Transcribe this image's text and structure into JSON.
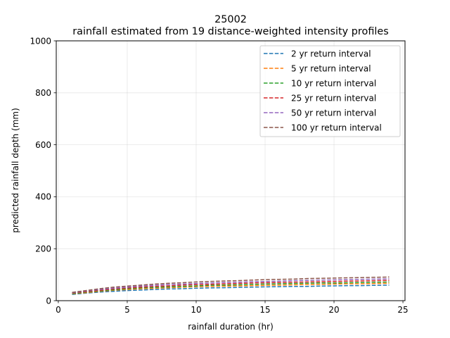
{
  "chart_data": {
    "type": "line",
    "title": "25002",
    "subtitle": "rainfall estimated from 19 distance-weighted intensity profiles",
    "xlabel": "rainfall duration (hr)",
    "ylabel": "predicted rainfall depth (mm)",
    "xlim": [
      -0.15,
      25.15
    ],
    "ylim": [
      0,
      1000
    ],
    "xticks": [
      0,
      5,
      10,
      15,
      20,
      25
    ],
    "yticks": [
      0,
      200,
      400,
      600,
      800,
      1000
    ],
    "grid": true,
    "legend_position": "top-right",
    "x": [
      1,
      2,
      3,
      4,
      5,
      6,
      7,
      8,
      9,
      10,
      11,
      12,
      13,
      14,
      15,
      16,
      17,
      18,
      19,
      20,
      21,
      22,
      23,
      24
    ],
    "series": [
      {
        "name": "2 yr return interval",
        "color": "#1f77b4",
        "style": "dashed",
        "values": [
          24,
          29,
          33,
          36,
          39,
          41,
          43,
          45,
          46,
          48,
          49,
          50,
          51,
          52,
          53,
          54,
          55,
          55,
          56,
          57,
          58,
          58,
          59,
          60
        ]
      },
      {
        "name": "5 yr return interval",
        "color": "#ff7f0e",
        "style": "dashed",
        "values": [
          26,
          31,
          36,
          40,
          43,
          46,
          48,
          50,
          52,
          54,
          55,
          56,
          57,
          58,
          59,
          60,
          61,
          62,
          63,
          64,
          65,
          65,
          66,
          67
        ]
      },
      {
        "name": "10 yr return interval",
        "color": "#2ca02c",
        "style": "dashed",
        "values": [
          27,
          33,
          38,
          42,
          46,
          49,
          51,
          53,
          55,
          57,
          59,
          60,
          61,
          63,
          64,
          65,
          66,
          67,
          68,
          68,
          69,
          70,
          71,
          72
        ]
      },
      {
        "name": "25 yr return interval",
        "color": "#d62728",
        "style": "dashed",
        "values": [
          29,
          35,
          40,
          45,
          49,
          52,
          55,
          57,
          60,
          62,
          63,
          65,
          66,
          68,
          69,
          70,
          71,
          72,
          73,
          74,
          75,
          76,
          77,
          78
        ]
      },
      {
        "name": "50 yr return interval",
        "color": "#9467bd",
        "style": "dashed",
        "values": [
          30,
          37,
          43,
          48,
          52,
          56,
          59,
          62,
          64,
          66,
          68,
          70,
          71,
          73,
          74,
          75,
          77,
          78,
          79,
          80,
          81,
          82,
          83,
          84
        ]
      },
      {
        "name": "100 yr return interval",
        "color": "#8c564b",
        "style": "dashed",
        "values": [
          32,
          39,
          46,
          52,
          56,
          60,
          64,
          67,
          69,
          72,
          74,
          76,
          77,
          79,
          81,
          82,
          83,
          85,
          86,
          87,
          88,
          89,
          90,
          91
        ]
      }
    ]
  }
}
